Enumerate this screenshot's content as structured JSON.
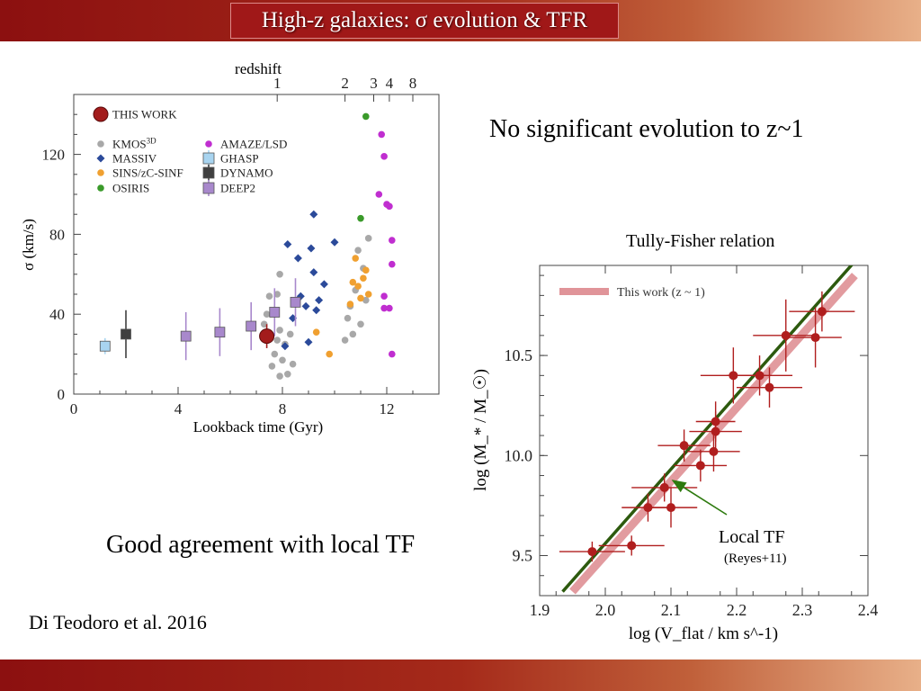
{
  "slide": {
    "title": "High-z galaxies: σ evolution & TFR",
    "note_top": "No significant evolution to z~1",
    "note_bottom": "Good agreement with local TF",
    "citation": "Di Teodoro et al. 2016"
  },
  "colors": {
    "bar_dark": "#8c1010",
    "bar_light": "#e8b089",
    "local_tf": "#2d5a0e",
    "tf_band": "#d97a80",
    "tf_point": "#b01e1e"
  },
  "chart_data": [
    {
      "type": "scatter",
      "title": "",
      "xlabel": "Lookback time (Gyr)",
      "ylabel": "σ (km/s)",
      "x2label": "redshift",
      "xlim": [
        0,
        14
      ],
      "ylim": [
        0,
        150
      ],
      "x_ticks": [
        "0",
        "4",
        "8",
        "12"
      ],
      "y_ticks": [
        "0",
        "40",
        "80",
        "120"
      ],
      "x2_ticks": [
        "1",
        "2",
        "3",
        "4",
        "8"
      ],
      "legend": [
        {
          "label": "THIS WORK",
          "color": "#a31c1c",
          "marker": "circle-large"
        },
        {
          "label": "KMOS3D",
          "color": "#a8a8a8",
          "marker": "circle"
        },
        {
          "label": "MASSIV",
          "color": "#2b4a9a",
          "marker": "diamond"
        },
        {
          "label": "SINS/zC-SINF",
          "color": "#f0a030",
          "marker": "circle"
        },
        {
          "label": "OSIRIS",
          "color": "#3a9a2a",
          "marker": "circle"
        },
        {
          "label": "AMAZE/LSD",
          "color": "#c02ed0",
          "marker": "circle"
        },
        {
          "label": "GHASP",
          "color": "#a8d4f0",
          "marker": "square"
        },
        {
          "label": "DYNAMO",
          "color": "#404040",
          "marker": "square"
        },
        {
          "label": "DEEP2",
          "color": "#a888cc",
          "marker": "square"
        }
      ],
      "series": [
        {
          "name": "THIS WORK",
          "points": [
            [
              7.4,
              29
            ]
          ]
        },
        {
          "name": "GHASP",
          "points": [
            [
              1.2,
              24
            ]
          ]
        },
        {
          "name": "DYNAMO",
          "points": [
            [
              2.0,
              30
            ]
          ]
        },
        {
          "name": "DEEP2",
          "points": [
            [
              4.3,
              29
            ],
            [
              5.6,
              31
            ],
            [
              6.8,
              34
            ],
            [
              7.7,
              41
            ],
            [
              8.5,
              46
            ]
          ]
        },
        {
          "name": "KMOS3D",
          "points": [
            [
              7.3,
              35
            ],
            [
              7.4,
              40
            ],
            [
              7.6,
              14
            ],
            [
              7.7,
              20
            ],
            [
              7.8,
              27
            ],
            [
              7.8,
              50
            ],
            [
              7.9,
              32
            ],
            [
              7.9,
              60
            ],
            [
              8.0,
              17
            ],
            [
              8.1,
              25
            ],
            [
              8.2,
              10
            ],
            [
              8.3,
              30
            ],
            [
              8.4,
              15
            ],
            [
              7.5,
              49
            ],
            [
              7.9,
              9
            ],
            [
              10.4,
              27
            ],
            [
              10.5,
              38
            ],
            [
              10.6,
              44
            ],
            [
              10.7,
              30
            ],
            [
              10.8,
              52
            ],
            [
              10.9,
              72
            ],
            [
              11.0,
              35
            ],
            [
              11.1,
              63
            ],
            [
              11.2,
              47
            ],
            [
              11.3,
              78
            ]
          ]
        },
        {
          "name": "MASSIV",
          "points": [
            [
              8.1,
              24
            ],
            [
              8.2,
              75
            ],
            [
              8.4,
              38
            ],
            [
              8.6,
              68
            ],
            [
              8.7,
              49
            ],
            [
              8.9,
              44
            ],
            [
              9.0,
              26
            ],
            [
              9.2,
              61
            ],
            [
              9.3,
              42
            ],
            [
              9.4,
              47
            ],
            [
              9.6,
              55
            ],
            [
              9.1,
              73
            ],
            [
              9.2,
              90
            ],
            [
              10.0,
              76
            ]
          ]
        },
        {
          "name": "SINS/zC-SINF",
          "points": [
            [
              9.3,
              31
            ],
            [
              9.8,
              20
            ],
            [
              10.6,
              45
            ],
            [
              10.7,
              56
            ],
            [
              10.8,
              68
            ],
            [
              10.9,
              54
            ],
            [
              11.0,
              48
            ],
            [
              11.1,
              58
            ],
            [
              11.2,
              62
            ],
            [
              11.3,
              50
            ]
          ]
        },
        {
          "name": "OSIRIS",
          "points": [
            [
              11.0,
              88
            ],
            [
              11.2,
              139
            ]
          ]
        },
        {
          "name": "AMAZE/LSD",
          "points": [
            [
              11.7,
              100
            ],
            [
              11.8,
              130
            ],
            [
              11.9,
              119
            ],
            [
              11.9,
              49
            ],
            [
              12.0,
              95
            ],
            [
              12.1,
              94
            ],
            [
              12.1,
              43
            ],
            [
              12.2,
              77
            ],
            [
              12.2,
              65
            ],
            [
              12.2,
              20
            ],
            [
              11.9,
              43
            ]
          ]
        }
      ]
    },
    {
      "type": "scatter",
      "title": "Tully-Fisher relation",
      "xlabel": "log (V_flat / km s^-1)",
      "ylabel": "log (M_* / M_☉)",
      "xlim": [
        1.9,
        2.4
      ],
      "ylim": [
        9.3,
        10.95
      ],
      "x_ticks": [
        "1.9",
        "2.0",
        "2.1",
        "2.2",
        "2.3",
        "2.4"
      ],
      "y_ticks": [
        "9.5",
        "10.0",
        "10.5"
      ],
      "legend": [
        {
          "label": "This work (z ~ 1)",
          "color": "#d97a80"
        }
      ],
      "annotation": {
        "label": "Local TF",
        "sublabel": "(Reyes+11)"
      },
      "fit_lines": [
        {
          "name": "Local TF",
          "points": [
            [
              1.935,
              9.32
            ],
            [
              2.38,
              10.97
            ]
          ]
        },
        {
          "name": "This work (z ~ 1)",
          "points": [
            [
              1.95,
              9.32
            ],
            [
              2.38,
              10.9
            ]
          ]
        }
      ],
      "points": [
        {
          "x": 1.98,
          "y": 9.52,
          "ex": 0.05,
          "ey": 0.05
        },
        {
          "x": 2.04,
          "y": 9.55,
          "ex": 0.05,
          "ey": 0.05
        },
        {
          "x": 2.065,
          "y": 9.74,
          "ex": 0.04,
          "ey": 0.07
        },
        {
          "x": 2.09,
          "y": 9.84,
          "ex": 0.05,
          "ey": 0.07
        },
        {
          "x": 2.1,
          "y": 9.74,
          "ex": 0.04,
          "ey": 0.1
        },
        {
          "x": 2.12,
          "y": 10.05,
          "ex": 0.04,
          "ey": 0.08
        },
        {
          "x": 2.145,
          "y": 9.95,
          "ex": 0.04,
          "ey": 0.08
        },
        {
          "x": 2.165,
          "y": 10.02,
          "ex": 0.04,
          "ey": 0.1
        },
        {
          "x": 2.168,
          "y": 10.12,
          "ex": 0.04,
          "ey": 0.1
        },
        {
          "x": 2.168,
          "y": 10.17,
          "ex": 0.03,
          "ey": 0.1
        },
        {
          "x": 2.195,
          "y": 10.4,
          "ex": 0.05,
          "ey": 0.14
        },
        {
          "x": 2.235,
          "y": 10.4,
          "ex": 0.05,
          "ey": 0.1
        },
        {
          "x": 2.25,
          "y": 10.34,
          "ex": 0.05,
          "ey": 0.1
        },
        {
          "x": 2.275,
          "y": 10.6,
          "ex": 0.05,
          "ey": 0.18
        },
        {
          "x": 2.32,
          "y": 10.59,
          "ex": 0.04,
          "ey": 0.15
        },
        {
          "x": 2.33,
          "y": 10.72,
          "ex": 0.05,
          "ey": 0.1
        }
      ]
    }
  ]
}
